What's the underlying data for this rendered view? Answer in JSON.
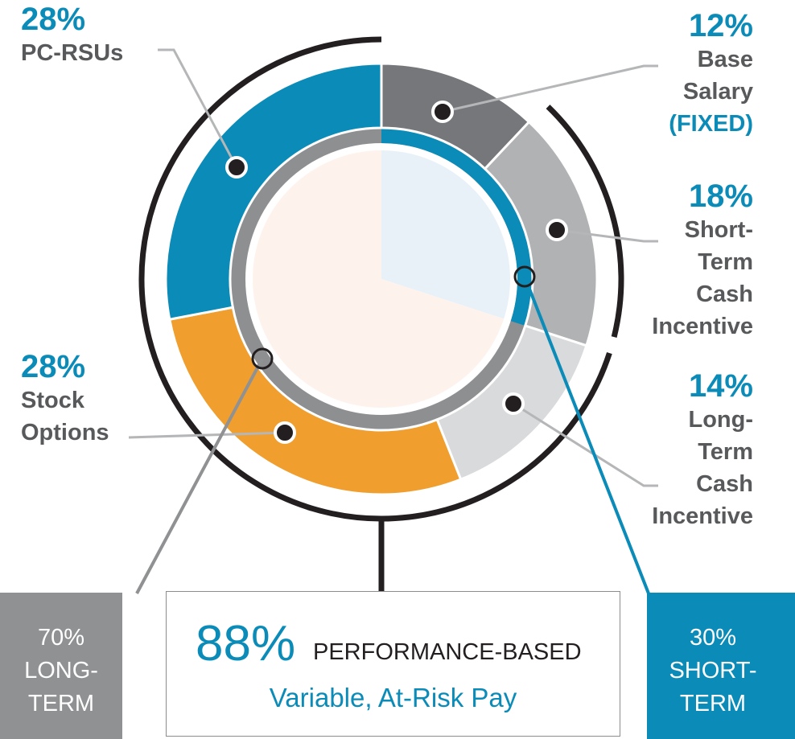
{
  "chart_data": {
    "type": "pie",
    "segments": [
      {
        "name": "Base Salary",
        "pct": "12%",
        "value": 12,
        "note": "(FIXED)",
        "color": "#76777a"
      },
      {
        "name": "Short-Term Cash Incentive",
        "pct": "18%",
        "value": 18,
        "color": "#b1b2b4"
      },
      {
        "name": "Long-Term Cash Incentive",
        "pct": "14%",
        "value": 14,
        "color": "#d9dadb"
      },
      {
        "name": "Stock Options",
        "pct": "28%",
        "value": 28,
        "color": "#f09e2e"
      },
      {
        "name": "PC-RSUs",
        "pct": "28%",
        "value": 28,
        "color": "#0a8bb8"
      }
    ],
    "inner_pie": [
      {
        "name": "Short-Term",
        "value": 30,
        "color": "#e9f1f8"
      },
      {
        "name": "Long-Term",
        "value": 70,
        "color": "#fdf3ec"
      }
    ],
    "labels": {
      "pc_rsus": {
        "pct": "28%",
        "lines": [
          "PC-RSUs"
        ]
      },
      "base_salary": {
        "pct": "12%",
        "lines": [
          "Base",
          "Salary"
        ],
        "fixed": "(FIXED)"
      },
      "short_term_cash": {
        "pct": "18%",
        "lines": [
          "Short-",
          "Term",
          "Cash",
          "Incentive"
        ]
      },
      "stock_options": {
        "pct": "28%",
        "lines": [
          "Stock",
          "Options"
        ]
      },
      "long_term_cash": {
        "pct": "14%",
        "lines": [
          "Long-",
          "Term",
          "Cash",
          "Incentive"
        ]
      }
    },
    "long_term_box": {
      "pct": "70%",
      "line1": "LONG-",
      "line2": "TERM",
      "color": "#909193"
    },
    "short_term_box": {
      "pct": "30%",
      "line1": "SHORT-",
      "line2": "TERM",
      "color": "#0a8bb8"
    },
    "performance": {
      "pct": "88%",
      "label": "PERFORMANCE-BASED",
      "sub": "Variable, At-Risk Pay"
    }
  }
}
